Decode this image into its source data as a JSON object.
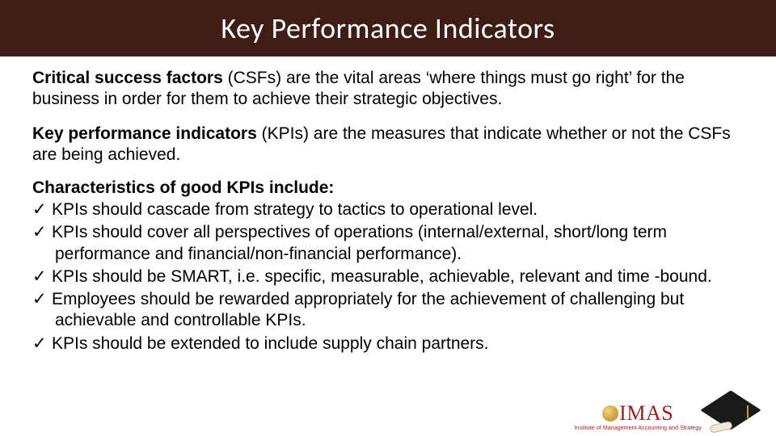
{
  "title": "Key Performance Indicators",
  "para1": {
    "bold": "Critical success factors",
    "rest": " (CSFs) are the vital areas ‘where things must go right’ for the business in order for them to achieve their strategic objectives."
  },
  "para2": {
    "bold": "Key performance indicators",
    "rest": " (KPIs) are the measures that indicate whether or not the CSFs are being achieved."
  },
  "char_heading": "Characteristics of good KPIs include:",
  "bullets": [
    "KPIs should cascade from strategy to tactics to operational level.",
    "KPIs should cover all perspectives of operations (internal/external, short/long term performance and financial/non-financial performance).",
    "KPIs should be SMART, i.e. specific, measurable, achievable, relevant and time -bound.",
    "Employees should be rewarded appropriately for the achievement of challenging but achievable and controllable KPIs.",
    "KPIs should be extended to include supply chain partners."
  ],
  "logo": {
    "text": "IMAS",
    "subtitle": "Institute of Management Accounting and Strategy"
  },
  "colors": {
    "title_bg": "#3e1d14",
    "title_fg": "#ffffff",
    "logo_color": "#9a1f1f"
  }
}
